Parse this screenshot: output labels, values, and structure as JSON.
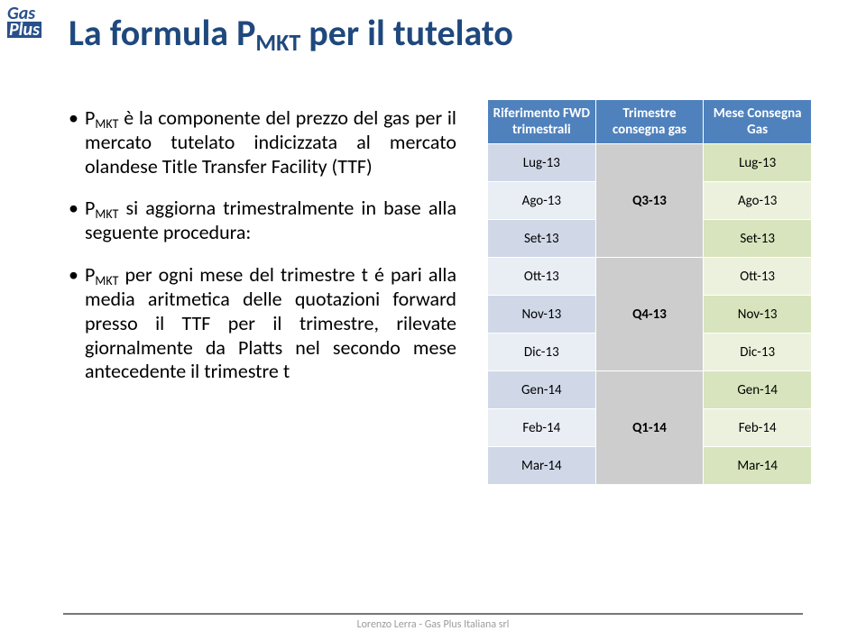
{
  "logo": {
    "top": "Gas",
    "bottom": "Plus"
  },
  "title": {
    "prefix": "La formula P",
    "sub": "MKT",
    "suffix": " per il tutelato"
  },
  "bullets": [
    {
      "parts": [
        {
          "t": "P"
        },
        {
          "t": "MKT",
          "sub": true
        },
        {
          "t": " è la componente del prezzo del gas per il mercato tutelato indicizzata al mercato olandese Title Transfer Facility (TTF)"
        }
      ]
    },
    {
      "parts": [
        {
          "t": "P"
        },
        {
          "t": "MKT",
          "sub": true
        },
        {
          "t": " si aggiorna trimestralmente in base alla seguente procedura:"
        }
      ]
    },
    {
      "parts": [
        {
          "t": "P"
        },
        {
          "t": "MKT",
          "sub": true
        },
        {
          "t": " per ogni mese del trimestre t é pari alla media aritmetica delle quotazioni forward presso il TTF per il trimestre, rilevate giornalmente da Platts nel secondo mese antecedente il trimestre t"
        }
      ]
    }
  ],
  "table": {
    "headers": [
      "Riferimento FWD trimestrali",
      "Trimestre consegna gas",
      "Mese Consegna Gas"
    ],
    "rows": [
      {
        "a": "Lug-13",
        "b": "Q3-13",
        "c": "Lug-13",
        "bspan": 3,
        "parity": "even"
      },
      {
        "a": "Ago-13",
        "c": "Ago-13",
        "parity": "odd"
      },
      {
        "a": "Set-13",
        "c": "Set-13",
        "parity": "even"
      },
      {
        "a": "Ott-13",
        "b": "Q4-13",
        "c": "Ott-13",
        "bspan": 3,
        "parity": "odd"
      },
      {
        "a": "Nov-13",
        "c": "Nov-13",
        "parity": "even"
      },
      {
        "a": "Dic-13",
        "c": "Dic-13",
        "parity": "odd"
      },
      {
        "a": "Gen-14",
        "b": "Q1-14",
        "c": "Gen-14",
        "bspan": 3,
        "parity": "even"
      },
      {
        "a": "Feb-14",
        "c": "Feb-14",
        "parity": "odd"
      },
      {
        "a": "Mar-14",
        "c": "Mar-14",
        "parity": "even"
      }
    ]
  },
  "footer": "Lorenzo Lerra - Gas Plus Italiana srl"
}
